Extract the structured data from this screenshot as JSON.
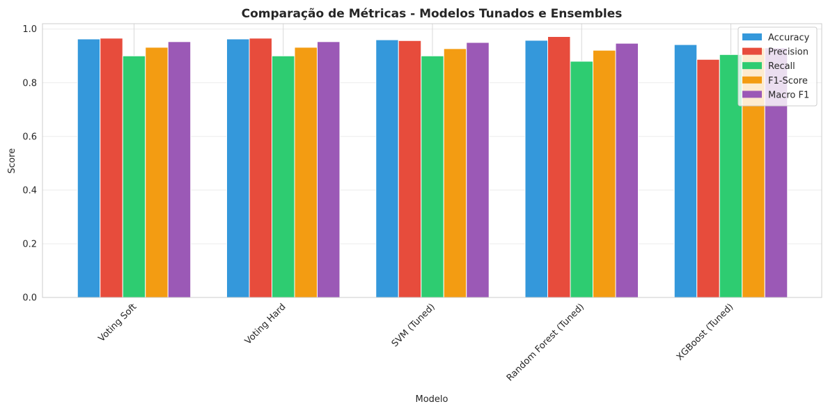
{
  "chart_data": {
    "type": "bar",
    "title": "Comparação de Métricas - Modelos Tunados e Ensembles",
    "xlabel": "Modelo",
    "ylabel": "Score",
    "ylim": [
      0,
      1.02
    ],
    "yticks": [
      "0.0",
      "0.2",
      "0.4",
      "0.6",
      "0.8",
      "1.0"
    ],
    "grid": true,
    "legend_position": "top-right",
    "categories": [
      "Voting Soft",
      "Voting Hard",
      "SVM (Tuned)",
      "Random Forest (Tuned)",
      "XGBoost (Tuned)"
    ],
    "series": [
      {
        "name": "Accuracy",
        "color": "#3498db",
        "values": [
          0.963,
          0.963,
          0.96,
          0.958,
          0.942
        ]
      },
      {
        "name": "Precision",
        "color": "#e74c3c",
        "values": [
          0.966,
          0.966,
          0.957,
          0.972,
          0.887
        ]
      },
      {
        "name": "Recall",
        "color": "#2ecc71",
        "values": [
          0.9,
          0.9,
          0.9,
          0.88,
          0.905
        ]
      },
      {
        "name": "F1-Score",
        "color": "#f39c12",
        "values": [
          0.932,
          0.932,
          0.927,
          0.921,
          0.929
        ]
      },
      {
        "name": "Macro F1",
        "color": "#9b59b6",
        "values": [
          0.953,
          0.953,
          0.95,
          0.947,
          0.93
        ]
      }
    ]
  }
}
